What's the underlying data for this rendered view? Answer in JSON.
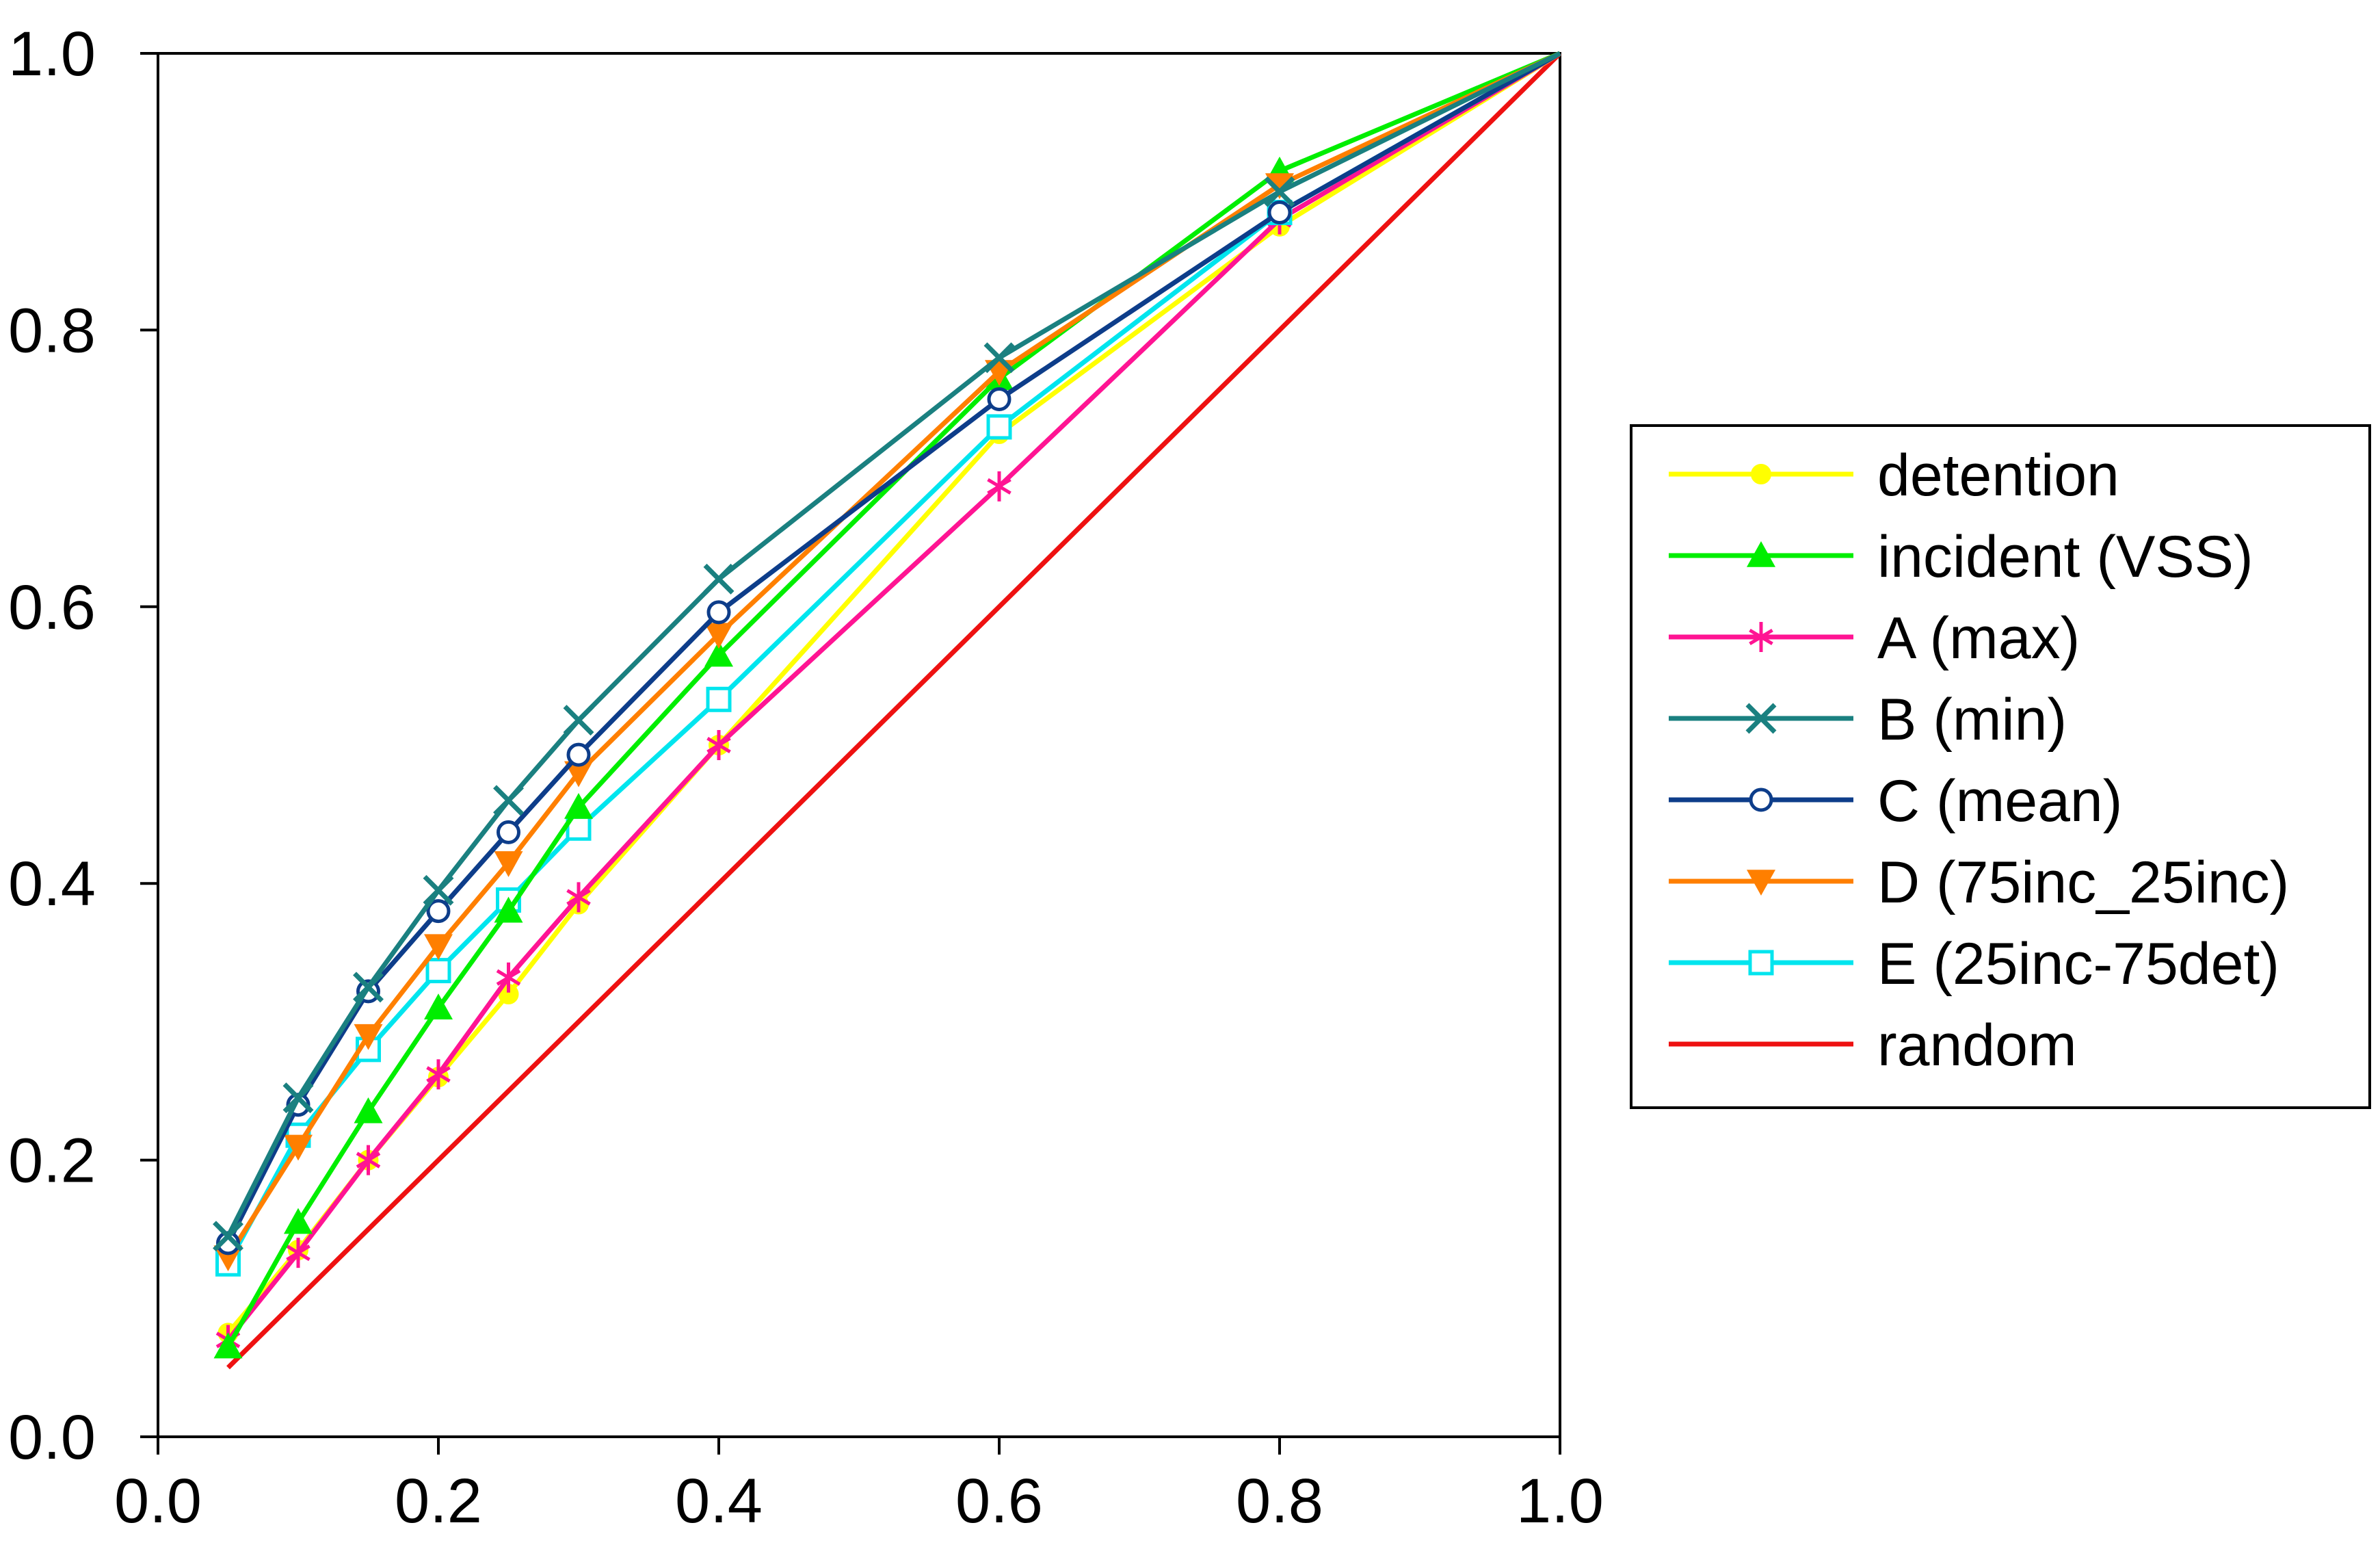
{
  "chart_data": {
    "type": "line",
    "title": "",
    "xlabel": "",
    "ylabel": "",
    "xlim": [
      0.0,
      1.0
    ],
    "ylim": [
      0.0,
      1.0
    ],
    "x_ticks": [
      "0.0",
      "0.2",
      "0.4",
      "0.6",
      "0.8",
      "1.0"
    ],
    "y_ticks": [
      "0.0",
      "0.2",
      "0.4",
      "0.6",
      "0.8",
      "1.0"
    ],
    "grid": false,
    "legend_position": "right",
    "series": [
      {
        "name": "detention",
        "color": "#ffff00",
        "marker": "dot",
        "x": [
          0.05,
          0.1,
          0.15,
          0.2,
          0.25,
          0.3,
          0.4,
          0.6,
          0.8,
          1.0
        ],
        "y": [
          0.075,
          0.135,
          0.2,
          0.26,
          0.32,
          0.385,
          0.5,
          0.725,
          0.875,
          1.0
        ]
      },
      {
        "name": "incident (VSS)",
        "color": "#00ee00",
        "marker": "triangle-up",
        "x": [
          0.05,
          0.1,
          0.15,
          0.2,
          0.25,
          0.3,
          0.4,
          0.6,
          0.8,
          1.0
        ],
        "y": [
          0.065,
          0.155,
          0.235,
          0.31,
          0.38,
          0.455,
          0.565,
          0.765,
          0.915,
          1.0
        ]
      },
      {
        "name": "A (max)",
        "color": "#ff1493",
        "marker": "asterisk",
        "x": [
          0.05,
          0.1,
          0.15,
          0.2,
          0.25,
          0.3,
          0.4,
          0.6,
          0.8,
          1.0
        ],
        "y": [
          0.07,
          0.133,
          0.2,
          0.262,
          0.332,
          0.39,
          0.5,
          0.687,
          0.88,
          1.0
        ]
      },
      {
        "name": "B (min)",
        "color": "#1a8080",
        "marker": "x",
        "x": [
          0.05,
          0.1,
          0.15,
          0.2,
          0.25,
          0.3,
          0.4,
          0.6,
          0.8,
          1.0
        ],
        "y": [
          0.145,
          0.245,
          0.325,
          0.395,
          0.46,
          0.518,
          0.62,
          0.78,
          0.9,
          1.0
        ]
      },
      {
        "name": "C (mean)",
        "color": "#0d3d8a",
        "marker": "circle-open",
        "x": [
          0.05,
          0.1,
          0.15,
          0.2,
          0.25,
          0.3,
          0.4,
          0.6,
          0.8,
          1.0
        ],
        "y": [
          0.14,
          0.24,
          0.322,
          0.38,
          0.437,
          0.493,
          0.596,
          0.75,
          0.885,
          1.0
        ]
      },
      {
        "name": "D (75inc_25inc)",
        "color": "#ff7f00",
        "marker": "triangle-down",
        "x": [
          0.05,
          0.1,
          0.15,
          0.2,
          0.25,
          0.3,
          0.4,
          0.6,
          0.8,
          1.0
        ],
        "y": [
          0.13,
          0.21,
          0.29,
          0.355,
          0.415,
          0.48,
          0.58,
          0.77,
          0.905,
          1.0
        ]
      },
      {
        "name": "E (25inc-75det)",
        "color": "#00e5ee",
        "marker": "square-open",
        "x": [
          0.05,
          0.1,
          0.15,
          0.2,
          0.25,
          0.3,
          0.4,
          0.6,
          0.8,
          1.0
        ],
        "y": [
          0.125,
          0.218,
          0.28,
          0.337,
          0.388,
          0.44,
          0.533,
          0.73,
          0.885,
          1.0
        ]
      },
      {
        "name": "random",
        "color": "#ee1111",
        "marker": "none",
        "x": [
          0.05,
          1.0
        ],
        "y": [
          0.05,
          1.0
        ]
      }
    ]
  }
}
